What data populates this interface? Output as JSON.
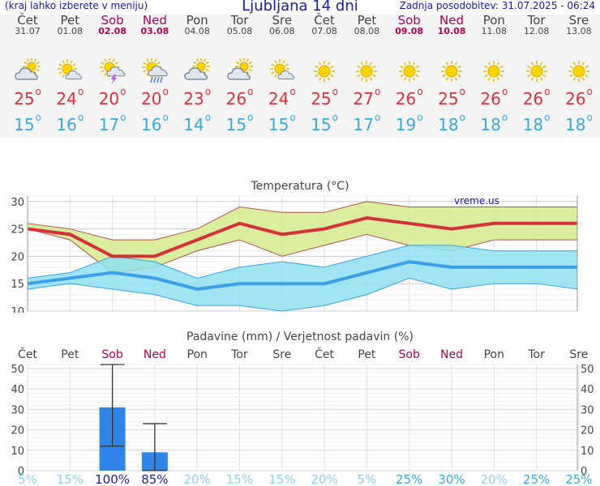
{
  "header": {
    "left": "(kraj lahko izberete v meniju)",
    "title": "Ljubljana 14 dni",
    "updated": "Zadnja posodobitev: 31.07.2025 - 06:24"
  },
  "days": [
    {
      "name": "Čet",
      "date": "31.07",
      "weekend": false,
      "icon": "partly-cloudy-icon",
      "tmax": "25",
      "tmin": "15"
    },
    {
      "name": "Pet",
      "date": "01.08",
      "weekend": false,
      "icon": "sun-cloud-icon",
      "tmax": "24",
      "tmin": "16"
    },
    {
      "name": "Sob",
      "date": "02.08",
      "weekend": true,
      "icon": "thunderstorm-icon",
      "tmax": "20",
      "tmin": "17"
    },
    {
      "name": "Ned",
      "date": "03.08",
      "weekend": true,
      "icon": "rain-sun-icon",
      "tmax": "20",
      "tmin": "16"
    },
    {
      "name": "Pon",
      "date": "04.08",
      "weekend": false,
      "icon": "partly-cloudy-icon",
      "tmax": "23",
      "tmin": "14"
    },
    {
      "name": "Tor",
      "date": "05.08",
      "weekend": false,
      "icon": "partly-cloudy-icon",
      "tmax": "26",
      "tmin": "15"
    },
    {
      "name": "Sre",
      "date": "06.08",
      "weekend": false,
      "icon": "sun-cloud-icon",
      "tmax": "24",
      "tmin": "15"
    },
    {
      "name": "Čet",
      "date": "07.08",
      "weekend": false,
      "icon": "sun-icon",
      "tmax": "25",
      "tmin": "15"
    },
    {
      "name": "Pet",
      "date": "08.08",
      "weekend": false,
      "icon": "sun-icon",
      "tmax": "27",
      "tmin": "17"
    },
    {
      "name": "Sob",
      "date": "09.08",
      "weekend": true,
      "icon": "sun-icon",
      "tmax": "26",
      "tmin": "19"
    },
    {
      "name": "Ned",
      "date": "10.08",
      "weekend": true,
      "icon": "sun-icon",
      "tmax": "25",
      "tmin": "18"
    },
    {
      "name": "Pon",
      "date": "11.08",
      "weekend": false,
      "icon": "sun-icon",
      "tmax": "26",
      "tmin": "18"
    },
    {
      "name": "Tor",
      "date": "12.08",
      "weekend": false,
      "icon": "sun-icon",
      "tmax": "26",
      "tmin": "18"
    },
    {
      "name": "Sre",
      "date": "13.08",
      "weekend": false,
      "icon": "sun-icon",
      "tmax": "26",
      "tmin": "18"
    }
  ],
  "colors": {
    "max_line": "#d6303c",
    "min_line": "#3aa0e8",
    "max_band": "#d4eb8c",
    "min_band": "#8fe0ee",
    "precip_bar": "#2f86e8"
  },
  "chart_data": [
    {
      "type": "line",
      "title": "Temperatura (°C)",
      "watermark": "vreme.us",
      "categories": [
        "31.07",
        "01.08",
        "02.08",
        "03.08",
        "04.08",
        "05.08",
        "06.08",
        "07.08",
        "08.08",
        "09.08",
        "10.08",
        "11.08",
        "12.08",
        "13.08"
      ],
      "ylim": [
        10,
        31
      ],
      "yticks": [
        10,
        15,
        20,
        25,
        30
      ],
      "series": [
        {
          "key": "max",
          "values": [
            25,
            24,
            20,
            20,
            23,
            26,
            24,
            25,
            27,
            26,
            25,
            26,
            26,
            26
          ],
          "band_low": [
            26,
            25,
            23,
            23,
            25,
            29,
            28,
            28,
            30,
            29,
            29,
            29,
            29,
            29
          ],
          "band_high": [
            25,
            23,
            17,
            18,
            21,
            23,
            20,
            22,
            24,
            22,
            21,
            23,
            23,
            23
          ]
        },
        {
          "key": "min",
          "values": [
            15,
            16,
            17,
            16,
            14,
            15,
            15,
            15,
            17,
            19,
            18,
            18,
            18,
            18
          ],
          "band_low": [
            16,
            17,
            20,
            19,
            16,
            18,
            19,
            18,
            20,
            22,
            22,
            21,
            21,
            21
          ],
          "band_high": [
            14,
            15,
            14,
            13,
            11,
            11,
            10,
            11,
            13,
            16,
            14,
            15,
            15,
            14
          ]
        }
      ],
      "grid": true
    },
    {
      "type": "bar",
      "title": "Padavine (mm) / Verjetnost padavin (%)",
      "categories": [
        "Čet",
        "Pet",
        "Sob",
        "Ned",
        "Pon",
        "Tor",
        "Sre",
        "Čet",
        "Pet",
        "Sob",
        "Ned",
        "Pon",
        "Tor",
        "Sre"
      ],
      "weekend": [
        false,
        false,
        true,
        true,
        false,
        false,
        false,
        false,
        false,
        true,
        true,
        false,
        false,
        false
      ],
      "ylim": [
        0,
        52
      ],
      "yticks": [
        0,
        10,
        20,
        30,
        40,
        50
      ],
      "values": [
        0,
        0,
        31,
        9,
        0,
        0,
        0,
        0,
        0,
        0,
        0,
        0,
        0,
        0
      ],
      "error_low": [
        0,
        0,
        12,
        0,
        0,
        0,
        0,
        0,
        0,
        0,
        0,
        0,
        0,
        0
      ],
      "error_high": [
        0,
        0,
        52,
        23,
        0,
        0,
        0,
        0,
        0,
        0,
        0,
        0,
        0,
        0
      ],
      "probability": [
        "5%",
        "15%",
        "100%",
        "85%",
        "20%",
        "15%",
        "15%",
        "20%",
        "5%",
        "25%",
        "30%",
        "20%",
        "25%",
        "25%"
      ],
      "probability_colors": [
        "#8fd0ee",
        "#8fd0ee",
        "#2020a0",
        "#2020a0",
        "#8fd0ee",
        "#8fd0ee",
        "#8fd0ee",
        "#8fd0ee",
        "#8fd0ee",
        "#3aa8e0",
        "#3aa8e0",
        "#8fd0ee",
        "#3aa8e0",
        "#3aa8e0"
      ],
      "grid": true
    }
  ]
}
